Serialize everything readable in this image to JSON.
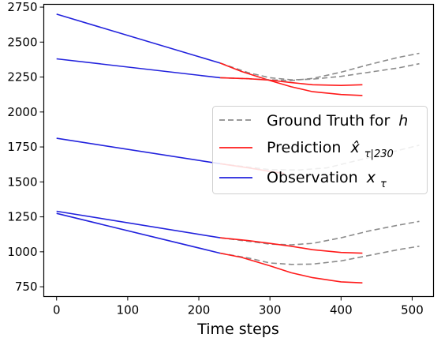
{
  "chart_data": {
    "type": "line",
    "title": "",
    "xlabel": "Time steps",
    "ylabel": "",
    "xlim": [
      -18,
      530
    ],
    "ylim": [
      680,
      2770
    ],
    "xticks": [
      0,
      100,
      200,
      300,
      400,
      500
    ],
    "yticks": [
      750,
      1000,
      1250,
      1500,
      1750,
      2000,
      2250,
      2500,
      2750
    ],
    "xtick_labels": [
      "0",
      "100",
      "200",
      "300",
      "400",
      "500"
    ],
    "ytick_labels": [
      "750",
      "1000",
      "1250",
      "1500",
      "1750",
      "2000",
      "2250",
      "2500",
      "2750"
    ],
    "grid": false,
    "legend_position": "center-right",
    "legend": [
      {
        "kind": "ground_truth",
        "text": "Ground Truth for",
        "math": "h",
        "color": "#8c8c8c",
        "dash": true
      },
      {
        "kind": "prediction",
        "text": "Prediction",
        "math": "x̂",
        "sub": "τ|230",
        "color": "#ff1a1a",
        "dash": false
      },
      {
        "kind": "observation",
        "text": "Observation",
        "math": "x",
        "sub": "τ",
        "color": "#2222dd",
        "dash": false
      }
    ],
    "series": [
      {
        "observation": {
          "x": [
            0,
            230
          ],
          "y": [
            2700,
            2350
          ]
        },
        "prediction": {
          "x": [
            230,
            260,
            300,
            330,
            360,
            400,
            430
          ],
          "y": [
            2350,
            2290,
            2225,
            2180,
            2145,
            2125,
            2118
          ]
        },
        "ground_truth": {
          "x": [
            230,
            270,
            300,
            330,
            360,
            400,
            440,
            480,
            510
          ],
          "y": [
            2350,
            2280,
            2245,
            2230,
            2235,
            2255,
            2285,
            2315,
            2345
          ]
        }
      },
      {
        "observation": {
          "x": [
            0,
            230
          ],
          "y": [
            2380,
            2245
          ]
        },
        "prediction": {
          "x": [
            230,
            270,
            300,
            330,
            360,
            400,
            430
          ],
          "y": [
            2245,
            2238,
            2228,
            2210,
            2195,
            2190,
            2195
          ]
        },
        "ground_truth": {
          "x": [
            230,
            270,
            300,
            330,
            360,
            400,
            440,
            480,
            510
          ],
          "y": [
            2245,
            2238,
            2230,
            2225,
            2240,
            2285,
            2340,
            2390,
            2420
          ]
        }
      },
      {
        "observation": {
          "x": [
            0,
            230
          ],
          "y": [
            1812,
            1630
          ]
        },
        "prediction": {
          "x": [
            230,
            270,
            300,
            320
          ],
          "y": [
            1630,
            1600,
            1575,
            1560
          ]
        },
        "ground_truth": {
          "x": [
            230,
            270,
            300,
            340,
            380,
            420,
            460,
            510
          ],
          "y": [
            1630,
            1605,
            1588,
            1585,
            1600,
            1650,
            1700,
            1762
          ]
        }
      },
      {
        "observation": {
          "x": [
            0,
            230
          ],
          "y": [
            1290,
            1100
          ]
        },
        "prediction": {
          "x": [
            230,
            270,
            300,
            330,
            360,
            400,
            430
          ],
          "y": [
            1100,
            1080,
            1060,
            1040,
            1015,
            995,
            990
          ]
        },
        "ground_truth": {
          "x": [
            230,
            270,
            300,
            330,
            360,
            400,
            440,
            480,
            510
          ],
          "y": [
            1100,
            1075,
            1055,
            1050,
            1060,
            1100,
            1150,
            1190,
            1218
          ]
        }
      },
      {
        "observation": {
          "x": [
            0,
            230
          ],
          "y": [
            1275,
            990
          ]
        },
        "prediction": {
          "x": [
            230,
            260,
            300,
            330,
            360,
            400,
            430
          ],
          "y": [
            990,
            960,
            900,
            850,
            815,
            785,
            778
          ]
        },
        "ground_truth": {
          "x": [
            230,
            270,
            300,
            330,
            360,
            400,
            440,
            480,
            510
          ],
          "y": [
            990,
            955,
            920,
            910,
            912,
            935,
            975,
            1015,
            1040
          ]
        }
      }
    ]
  }
}
